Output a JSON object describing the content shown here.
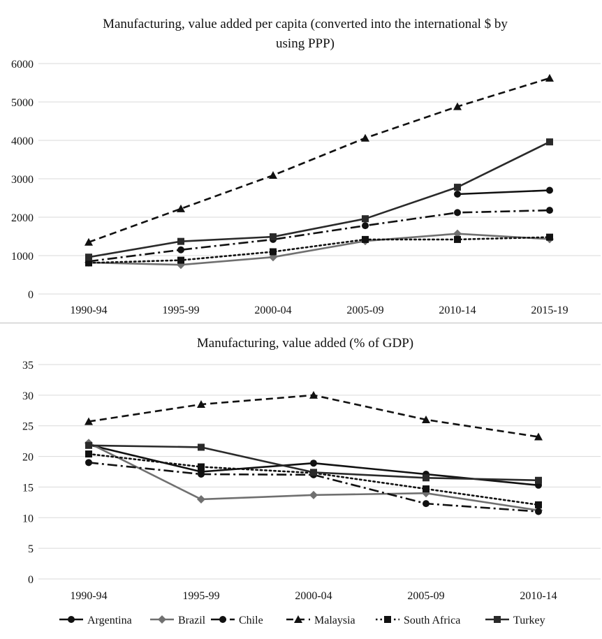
{
  "chart_data": [
    {
      "type": "line",
      "title": "Manufacturing, value added per capita (converted into the international $ by using PPP)",
      "title_lines": [
        "Manufacturing, value added per capita (converted into the international $ by",
        "using PPP)"
      ],
      "categories": [
        "1990-94",
        "1995-99",
        "2000-04",
        "2005-09",
        "2010-14",
        "2015-19"
      ],
      "ylim": [
        0,
        6000
      ],
      "yticks": [
        0,
        1000,
        2000,
        3000,
        4000,
        5000,
        6000
      ],
      "grid": true,
      "series": [
        {
          "name": "Argentina",
          "values": [
            null,
            null,
            null,
            null,
            2600,
            2700
          ],
          "color": "#111111",
          "marker": "circle",
          "dash": "solid"
        },
        {
          "name": "Brazil",
          "values": [
            820,
            760,
            960,
            1380,
            1570,
            1430
          ],
          "color": "#707070",
          "marker": "diamond",
          "dash": "solid"
        },
        {
          "name": "Chile",
          "values": [
            850,
            1150,
            1420,
            1780,
            2120,
            2180
          ],
          "color": "#111111",
          "marker": "circle",
          "dash": "dashdot"
        },
        {
          "name": "Malaysia",
          "values": [
            1350,
            2220,
            3090,
            4060,
            4880,
            5620
          ],
          "color": "#111111",
          "marker": "triangle",
          "dash": "dashed"
        },
        {
          "name": "South Africa",
          "values": [
            810,
            880,
            1100,
            1420,
            1420,
            1480
          ],
          "color": "#111111",
          "marker": "square",
          "dash": "dotted"
        },
        {
          "name": "Turkey",
          "values": [
            960,
            1370,
            1490,
            1960,
            2780,
            3960
          ],
          "color": "#2a2a2a",
          "marker": "square",
          "dash": "solid"
        }
      ]
    },
    {
      "type": "line",
      "title": "Manufacturing, value added (% of GDP)",
      "title_lines": [
        "Manufacturing, value added (% of GDP)"
      ],
      "categories": [
        "1990-94",
        "1995-99",
        "2000-04",
        "2005-09",
        "2010-14"
      ],
      "ylim": [
        0,
        35
      ],
      "yticks": [
        0,
        5,
        10,
        15,
        20,
        25,
        30,
        35
      ],
      "grid": true,
      "series": [
        {
          "name": "Argentina",
          "values": [
            21.9,
            17.5,
            18.9,
            17.1,
            15.3
          ],
          "color": "#111111",
          "marker": "circle",
          "dash": "solid"
        },
        {
          "name": "Brazil",
          "values": [
            22.2,
            13.0,
            13.7,
            14.0,
            11.2
          ],
          "color": "#707070",
          "marker": "diamond",
          "dash": "solid"
        },
        {
          "name": "Chile",
          "values": [
            19.0,
            17.1,
            17.0,
            12.3,
            11.0
          ],
          "color": "#111111",
          "marker": "circle",
          "dash": "dashdot"
        },
        {
          "name": "Malaysia",
          "values": [
            25.7,
            28.5,
            30.0,
            26.0,
            23.2
          ],
          "color": "#111111",
          "marker": "triangle",
          "dash": "dashed"
        },
        {
          "name": "South Africa",
          "values": [
            20.4,
            18.3,
            17.3,
            14.7,
            12.1
          ],
          "color": "#111111",
          "marker": "square",
          "dash": "dotted"
        },
        {
          "name": "Turkey",
          "values": [
            21.8,
            21.5,
            17.4,
            16.5,
            16.1
          ],
          "color": "#2a2a2a",
          "marker": "square",
          "dash": "solid"
        }
      ]
    }
  ],
  "legend": {
    "placement": "bottom",
    "items": [
      "Argentina",
      "Brazil",
      "Chile",
      "Malaysia",
      "South Africa",
      "Turkey"
    ]
  }
}
